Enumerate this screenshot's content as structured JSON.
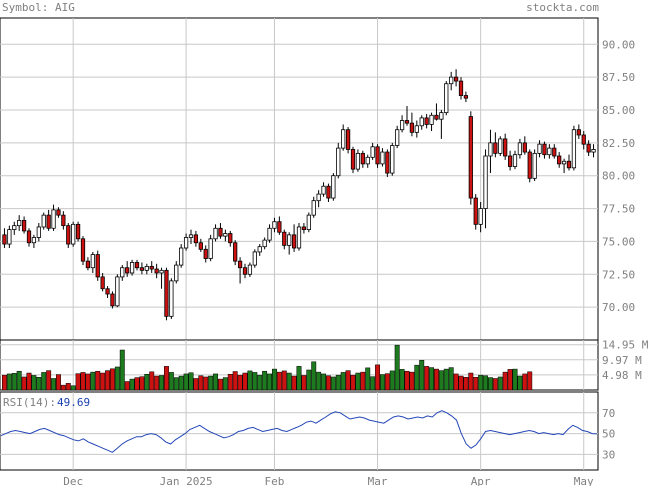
{
  "header": {
    "symbol_text": "Symbol: AIG",
    "site": "stockta.com"
  },
  "chart_data": [
    {
      "type": "candlestick",
      "title": "Symbol: AIG",
      "x_tick_labels": [
        "Dec",
        "Jan 2025",
        "Feb",
        "Mar",
        "Apr",
        "May"
      ],
      "y_tick_labels": [
        "90.00",
        "87.50",
        "85.00",
        "82.50",
        "80.00",
        "77.50",
        "75.00",
        "72.50",
        "70.00"
      ],
      "ylim": [
        67.5,
        92.0
      ],
      "grid": true,
      "up_color": "#ffffff",
      "down_color": "#cc1111",
      "ohlc": [
        [
          75.5,
          76.0,
          74.5,
          74.8
        ],
        [
          74.8,
          76.2,
          74.5,
          75.9
        ],
        [
          75.9,
          76.5,
          75.5,
          76.2
        ],
        [
          76.2,
          77.0,
          75.8,
          76.6
        ],
        [
          76.6,
          76.9,
          75.6,
          75.8
        ],
        [
          75.8,
          76.0,
          74.6,
          74.9
        ],
        [
          74.9,
          75.5,
          74.5,
          75.3
        ],
        [
          75.3,
          76.4,
          75.0,
          76.1
        ],
        [
          76.1,
          77.2,
          75.9,
          77.0
        ],
        [
          77.0,
          77.4,
          75.8,
          76.0
        ],
        [
          76.0,
          77.8,
          75.8,
          77.4
        ],
        [
          77.4,
          77.6,
          76.8,
          77.0
        ],
        [
          77.0,
          77.3,
          75.9,
          76.2
        ],
        [
          76.2,
          76.4,
          74.5,
          74.8
        ],
        [
          74.8,
          76.5,
          74.6,
          76.3
        ],
        [
          76.3,
          76.5,
          75.0,
          75.2
        ],
        [
          75.2,
          75.4,
          73.2,
          73.5
        ],
        [
          73.5,
          73.8,
          72.8,
          73.0
        ],
        [
          73.0,
          74.2,
          72.6,
          74.0
        ],
        [
          74.0,
          74.3,
          72.0,
          72.3
        ],
        [
          72.3,
          72.6,
          71.2,
          71.4
        ],
        [
          71.4,
          71.6,
          70.7,
          71.0
        ],
        [
          71.0,
          71.2,
          69.9,
          70.1
        ],
        [
          70.1,
          72.5,
          70.0,
          72.3
        ],
        [
          72.3,
          73.2,
          72.0,
          73.0
        ],
        [
          73.0,
          73.5,
          72.3,
          72.6
        ],
        [
          72.6,
          73.6,
          72.4,
          73.4
        ],
        [
          73.4,
          73.6,
          72.8,
          73.0
        ],
        [
          73.0,
          73.4,
          72.5,
          72.8
        ],
        [
          72.8,
          73.3,
          72.5,
          73.1
        ],
        [
          73.1,
          73.5,
          72.6,
          72.9
        ],
        [
          72.9,
          73.3,
          72.2,
          72.6
        ],
        [
          72.6,
          73.0,
          71.4,
          72.8
        ],
        [
          72.8,
          73.0,
          69.0,
          69.3
        ],
        [
          69.3,
          72.2,
          69.1,
          72.0
        ],
        [
          72.0,
          73.5,
          71.8,
          73.2
        ],
        [
          73.2,
          74.8,
          73.0,
          74.5
        ],
        [
          74.5,
          75.6,
          74.3,
          75.3
        ],
        [
          75.3,
          75.9,
          74.8,
          75.5
        ],
        [
          75.5,
          75.8,
          74.6,
          74.9
        ],
        [
          74.9,
          75.2,
          74.2,
          74.4
        ],
        [
          74.4,
          74.7,
          73.4,
          73.7
        ],
        [
          73.7,
          75.5,
          73.5,
          75.2
        ],
        [
          75.2,
          76.3,
          75.0,
          76.0
        ],
        [
          76.0,
          76.4,
          75.2,
          75.4
        ],
        [
          75.4,
          75.9,
          75.0,
          75.6
        ],
        [
          75.6,
          75.8,
          74.6,
          74.9
        ],
        [
          74.9,
          75.1,
          73.2,
          73.5
        ],
        [
          73.5,
          73.8,
          71.8,
          73.0
        ],
        [
          73.0,
          73.3,
          72.2,
          72.5
        ],
        [
          72.5,
          73.4,
          72.3,
          73.2
        ],
        [
          73.2,
          74.4,
          73.0,
          74.2
        ],
        [
          74.2,
          74.8,
          73.9,
          74.6
        ],
        [
          74.6,
          75.3,
          74.4,
          75.1
        ],
        [
          75.1,
          76.3,
          74.9,
          76.0
        ],
        [
          76.0,
          76.8,
          75.7,
          76.5
        ],
        [
          76.5,
          76.9,
          75.5,
          75.7
        ],
        [
          75.7,
          75.9,
          74.4,
          74.7
        ],
        [
          74.7,
          75.7,
          74.0,
          75.5
        ],
        [
          75.5,
          76.3,
          74.2,
          74.5
        ],
        [
          74.5,
          76.4,
          74.3,
          76.1
        ],
        [
          76.1,
          76.4,
          75.6,
          75.9
        ],
        [
          75.9,
          77.2,
          75.7,
          77.0
        ],
        [
          77.0,
          78.4,
          76.8,
          78.1
        ],
        [
          78.1,
          78.9,
          77.6,
          78.6
        ],
        [
          78.6,
          79.5,
          78.4,
          79.2
        ],
        [
          79.2,
          79.4,
          78.0,
          78.3
        ],
        [
          78.3,
          80.2,
          78.1,
          80.0
        ],
        [
          80.0,
          82.5,
          79.8,
          82.1
        ],
        [
          82.1,
          83.9,
          81.9,
          83.5
        ],
        [
          83.5,
          83.7,
          81.7,
          82.0
        ],
        [
          82.0,
          82.2,
          80.2,
          80.5
        ],
        [
          80.5,
          82.0,
          80.3,
          81.7
        ],
        [
          81.7,
          81.9,
          80.6,
          80.9
        ],
        [
          80.9,
          81.6,
          80.6,
          81.4
        ],
        [
          81.4,
          82.5,
          81.2,
          82.2
        ],
        [
          82.2,
          82.4,
          80.6,
          80.9
        ],
        [
          80.9,
          82.1,
          80.7,
          81.8
        ],
        [
          81.8,
          82.0,
          79.9,
          80.2
        ],
        [
          80.2,
          82.5,
          80.0,
          82.3
        ],
        [
          82.3,
          83.8,
          82.1,
          83.5
        ],
        [
          83.5,
          84.6,
          83.3,
          84.2
        ],
        [
          84.2,
          85.3,
          83.8,
          84.0
        ],
        [
          84.0,
          84.8,
          83.0,
          83.3
        ],
        [
          83.3,
          84.2,
          82.9,
          83.8
        ],
        [
          83.8,
          84.6,
          83.5,
          84.4
        ],
        [
          84.4,
          84.7,
          83.6,
          83.9
        ],
        [
          83.9,
          84.8,
          83.4,
          84.6
        ],
        [
          84.6,
          85.5,
          84.2,
          84.3
        ],
        [
          84.3,
          85.0,
          82.8,
          84.8
        ],
        [
          84.8,
          87.2,
          84.6,
          87.0
        ],
        [
          87.0,
          87.9,
          86.5,
          87.5
        ],
        [
          87.5,
          88.1,
          86.8,
          87.2
        ],
        [
          87.2,
          87.5,
          85.8,
          86.1
        ],
        [
          86.1,
          86.4,
          85.6,
          85.9
        ],
        [
          84.5,
          84.9,
          77.8,
          78.3
        ],
        [
          78.3,
          78.6,
          75.9,
          76.3
        ],
        [
          76.3,
          78.0,
          75.7,
          77.5
        ],
        [
          77.5,
          82.0,
          76.0,
          81.5
        ],
        [
          81.5,
          83.5,
          80.2,
          82.5
        ],
        [
          82.5,
          83.3,
          81.4,
          81.7
        ],
        [
          81.7,
          83.0,
          81.5,
          82.8
        ],
        [
          82.8,
          83.2,
          81.2,
          81.5
        ],
        [
          81.5,
          81.9,
          80.4,
          80.7
        ],
        [
          80.7,
          81.9,
          80.5,
          81.6
        ],
        [
          81.6,
          82.8,
          81.3,
          82.5
        ],
        [
          82.5,
          83.0,
          81.6,
          81.8
        ],
        [
          81.8,
          82.0,
          79.5,
          79.8
        ],
        [
          79.8,
          82.0,
          79.6,
          81.7
        ],
        [
          81.7,
          82.7,
          81.4,
          82.4
        ],
        [
          82.4,
          82.6,
          81.3,
          81.6
        ],
        [
          81.6,
          82.4,
          81.3,
          82.1
        ],
        [
          82.1,
          82.4,
          81.3,
          81.5
        ],
        [
          81.5,
          81.8,
          80.6,
          80.9
        ],
        [
          80.9,
          81.3,
          80.2,
          81.1
        ],
        [
          81.1,
          81.6,
          80.4,
          80.6
        ],
        [
          80.6,
          83.8,
          80.4,
          83.5
        ],
        [
          83.5,
          83.9,
          82.8,
          83.1
        ],
        [
          83.1,
          83.4,
          82.0,
          82.4
        ],
        [
          82.4,
          82.7,
          81.5,
          81.8
        ],
        [
          81.8,
          82.4,
          81.4,
          82.0
        ]
      ]
    },
    {
      "type": "bar",
      "series_name": "Volume",
      "y_tick_labels": [
        "14.95 M",
        "9.97 M",
        "4.98 M"
      ],
      "ylim": [
        0,
        16.5
      ],
      "values": [
        4.9,
        5.3,
        5.5,
        6.2,
        4.3,
        5.6,
        4.8,
        4.2,
        5.8,
        6.4,
        3.8,
        5.1,
        1.6,
        2.2,
        1.4,
        5.4,
        5.8,
        5.3,
        5.9,
        6.2,
        5.6,
        6.4,
        7.0,
        7.6,
        13.2,
        2.8,
        3.6,
        4.1,
        4.4,
        5.2,
        6.0,
        4.6,
        4.8,
        7.8,
        5.8,
        4.1,
        4.6,
        5.3,
        5.7,
        3.8,
        4.7,
        4.3,
        4.6,
        5.3,
        3.6,
        4.1,
        5.2,
        6.1,
        4.9,
        5.6,
        6.3,
        5.8,
        4.9,
        6.2,
        5.3,
        6.9,
        5.9,
        6.3,
        5.6,
        4.6,
        7.8,
        4.8,
        6.6,
        9.3,
        5.9,
        5.3,
        4.7,
        4.3,
        4.9,
        5.8,
        6.4,
        4.9,
        5.6,
        5.9,
        7.3,
        4.4,
        8.3,
        5.1,
        5.4,
        6.3,
        14.8,
        6.8,
        6.2,
        5.9,
        8.2,
        9.8,
        7.8,
        7.4,
        6.9,
        6.4,
        6.9,
        7.4,
        5.3,
        4.6,
        4.2,
        5.6,
        4.2,
        4.9,
        4.7,
        4.1,
        3.8,
        4.3,
        5.9,
        6.8,
        6.9,
        4.6,
        5.3,
        6.0
      ]
    },
    {
      "type": "line",
      "series_name": "RSI(14)",
      "title": "RSI(14):",
      "current_value_label": "49.69",
      "y_tick_labels": [
        "70",
        "50",
        "30"
      ],
      "ylim": [
        15,
        90
      ],
      "line_color": "#2447b8",
      "values": [
        48,
        50,
        52,
        53,
        52,
        51,
        50,
        52,
        54,
        55,
        53,
        51,
        49,
        48,
        46,
        44,
        43,
        45,
        42,
        40,
        38,
        36,
        34,
        32,
        36,
        40,
        43,
        45,
        47,
        47,
        49,
        50,
        49,
        46,
        42,
        40,
        44,
        47,
        50,
        54,
        56,
        58,
        55,
        52,
        50,
        48,
        46,
        47,
        49,
        52,
        53,
        55,
        56,
        54,
        52,
        53,
        54,
        55,
        53,
        52,
        54,
        56,
        58,
        61,
        62,
        60,
        63,
        66,
        69,
        71,
        70,
        67,
        64,
        65,
        66,
        65,
        63,
        62,
        61,
        60,
        63,
        66,
        67,
        66,
        64,
        65,
        66,
        65,
        67,
        66,
        70,
        72,
        70,
        67,
        63,
        50,
        40,
        36,
        39,
        45,
        52,
        53,
        52,
        51,
        50,
        49,
        50,
        51,
        52,
        53,
        52,
        50,
        51,
        50,
        49,
        50,
        49,
        54,
        58,
        56,
        53,
        52,
        50,
        49.69
      ]
    }
  ]
}
